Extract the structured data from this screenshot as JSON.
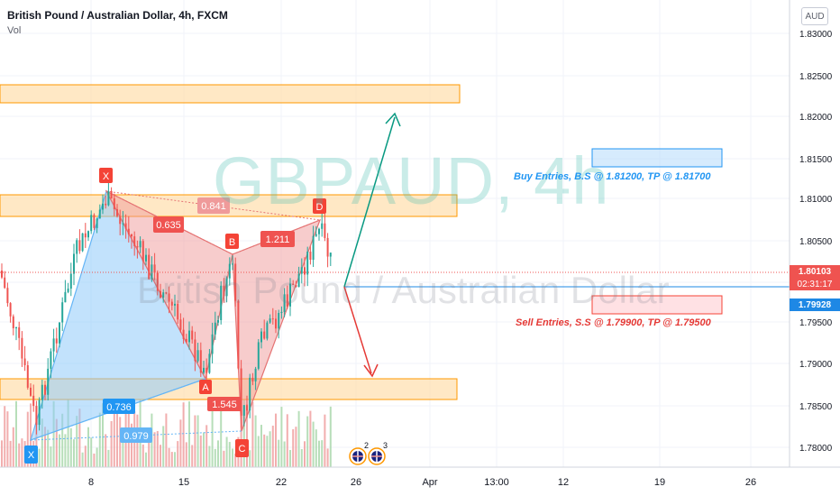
{
  "header": {
    "symbol_title": "British Pound / Australian Dollar, 4h, FXCM",
    "volume_label": "Vol"
  },
  "watermark": {
    "ticker": "GBPAUD, 4h",
    "description": "British Pound / Australian Dollar"
  },
  "price_scale": {
    "currency": "AUD",
    "ticks": [
      "1.83000",
      "1.82500",
      "1.82000",
      "1.81500",
      "1.81000",
      "1.80500",
      "1.80000",
      "1.79500",
      "1.79000",
      "1.78500",
      "1.78000"
    ],
    "current_price": "1.80103",
    "countdown": "02:31:17",
    "crosshair_price": "1.79928"
  },
  "time_scale": {
    "ticks": [
      "8",
      "15",
      "22",
      "26",
      "Apr",
      "13:00",
      "12",
      "19",
      "26"
    ]
  },
  "pattern": {
    "point_labels": [
      "X",
      "A",
      "B",
      "C",
      "D",
      "X"
    ],
    "ratios": [
      "0.635",
      "0.841",
      "1.211",
      "0.736",
      "1.545",
      "0.979"
    ]
  },
  "notes": {
    "buy": "Buy Entries, B.S @ 1.81200, TP @ 1.81700",
    "sell": "Sell Entries, S.S @ 1.79900, TP @ 1.79500"
  },
  "events": {
    "badge_1_count": "2",
    "badge_2_count": "3"
  },
  "colors": {
    "zone_fill": "#ffe0b2",
    "zone_border": "#ff9800",
    "buy_blue": "#2196f3",
    "sell_red": "#f44336",
    "teal_arrow": "#089981",
    "pattern_blue": "#90caf9",
    "pattern_red": "#ef9a9a",
    "current_price_bg": "#ef5350",
    "crosshair_price_bg": "#1e88e5"
  },
  "chart_data": {
    "type": "candlestick",
    "ylim": [
      1.7775,
      1.8325
    ],
    "price_levels": {
      "current": 1.80103,
      "line_blue": 1.79928
    },
    "zones": [
      {
        "from": 1.822,
        "to": 1.8237
      },
      {
        "from": 1.8082,
        "to": 1.8102
      },
      {
        "from": 1.7862,
        "to": 1.7882
      }
    ],
    "pattern_points": {
      "X1": 1.7812,
      "X": 1.811,
      "A": 1.789,
      "B": 1.803,
      "C": 1.7818,
      "D": 1.8075
    }
  }
}
